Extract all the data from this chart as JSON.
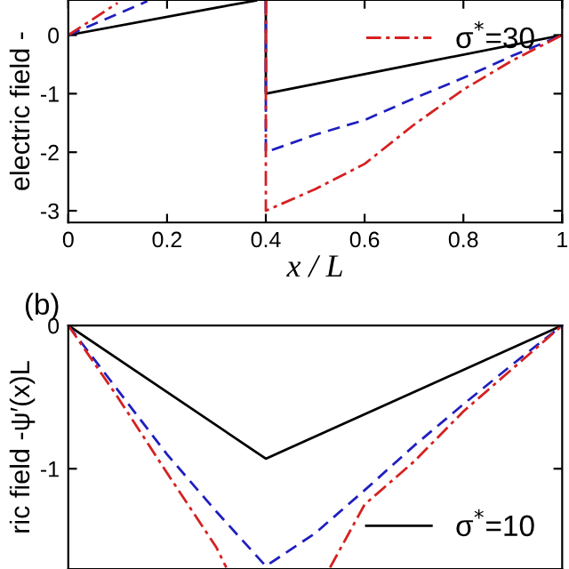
{
  "chart_data": [
    {
      "type": "line",
      "xlabel": "x / L",
      "ylabel": "electric field -",
      "xlim": [
        0,
        1
      ],
      "ylim": [
        -3.2,
        0.6
      ],
      "xticks": [
        0,
        0.2,
        0.4,
        0.6,
        0.8,
        1
      ],
      "yticks": [
        {
          "value": -3,
          "label": "-3"
        },
        {
          "value": -2,
          "label": "-2"
        },
        {
          "value": -1,
          "label": "-1"
        },
        0
      ],
      "legend": "top right",
      "grid": false,
      "series": [
        {
          "color": "#000000",
          "line_style": "solid",
          "x": [
            0,
            0.3,
            0.38,
            0.39,
            0.4,
            0.4,
            0.7,
            1
          ],
          "values": [
            0,
            0.47,
            0.59,
            null,
            0.59,
            -1,
            -0.5,
            0
          ]
        },
        {
          "color": "#1f1fbf",
          "line_style": "dashed",
          "x": [
            0,
            0.16,
            0.17,
            0.4,
            0.4,
            0.5,
            0.6,
            0.7,
            0.8,
            0.9,
            1
          ],
          "values": [
            0,
            0.58,
            null,
            0.59,
            -2,
            -1.7,
            -1.45,
            -1.08,
            -0.73,
            -0.35,
            0
          ]
        },
        {
          "name": "σ$^{*}$=30",
          "color": "#d62020",
          "line_style": "dashdot",
          "x": [
            0,
            0.1,
            0.11,
            0.4,
            0.4,
            0.5,
            0.6,
            0.7,
            0.8,
            0.9,
            1
          ],
          "values": [
            0,
            0.55,
            null,
            0.59,
            -3,
            -2.63,
            -2.2,
            -1.53,
            -0.93,
            -0.43,
            0
          ]
        }
      ]
    },
    {
      "type": "line",
      "ylabel": "ric field -ψ′(x)L",
      "xlim": [
        0,
        1
      ],
      "ylim": [
        -1.7,
        0
      ],
      "yticks": [
        {
          "value": -1,
          "label": "-1"
        },
        0
      ],
      "tick_labels": "y",
      "legend": "bottom right",
      "grid": false,
      "annotations": [
        "(b)"
      ],
      "series": [
        {
          "name": "σ$^{*}$=10",
          "color": "#000000",
          "line_style": "solid",
          "x": [
            0,
            0.4,
            1
          ],
          "values": [
            0,
            -0.93,
            0
          ]
        },
        {
          "color": "#1f1fbf",
          "line_style": "dashed",
          "x": [
            0,
            0.1,
            0.2,
            0.3,
            0.4,
            0.5,
            0.6,
            0.7,
            0.8,
            0.9,
            1
          ],
          "values": [
            0,
            -0.45,
            -0.9,
            -1.3,
            -1.68,
            -1.45,
            -1.15,
            -0.84,
            -0.55,
            -0.27,
            0
          ]
        },
        {
          "color": "#d62020",
          "line_style": "dashdot",
          "x": [
            0,
            0.1,
            0.2,
            0.3,
            0.32,
            0.33,
            0.53,
            0.6,
            0.7,
            0.8,
            0.9,
            1
          ],
          "values": [
            0,
            -0.5,
            -1.03,
            -1.55,
            -1.69,
            null,
            -1.69,
            -1.25,
            -0.95,
            -0.6,
            -0.3,
            0
          ]
        }
      ]
    }
  ]
}
